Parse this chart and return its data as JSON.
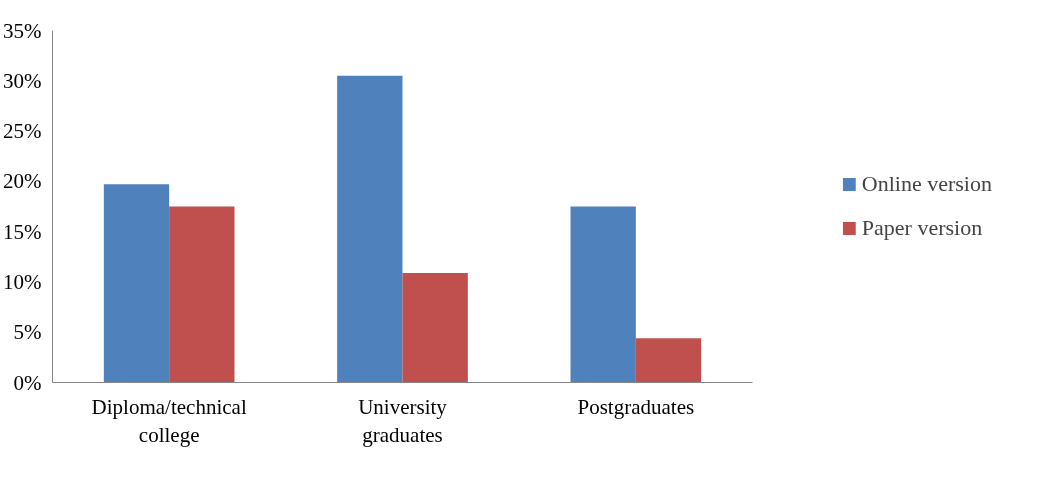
{
  "chart_data": {
    "type": "bar",
    "categories": [
      "Diploma/technical college",
      "University graduates",
      "Postgraduates"
    ],
    "series": [
      {
        "name": "Online version",
        "color": "#4f81bd",
        "values": [
          19.7,
          30.5,
          17.5
        ]
      },
      {
        "name": "Paper version",
        "color": "#c0504d",
        "values": [
          17.5,
          10.9,
          4.4
        ]
      }
    ],
    "ylim": [
      0,
      35
    ],
    "yticks": [
      {
        "value": 0,
        "label": "0%"
      },
      {
        "value": 5,
        "label": "5%"
      },
      {
        "value": 10,
        "label": "10%"
      },
      {
        "value": 15,
        "label": "15%"
      },
      {
        "value": 20,
        "label": "20%"
      },
      {
        "value": 25,
        "label": "25%"
      },
      {
        "value": 30,
        "label": "30%"
      },
      {
        "value": 35,
        "label": "35%"
      }
    ],
    "grid": false,
    "legend": "right"
  }
}
